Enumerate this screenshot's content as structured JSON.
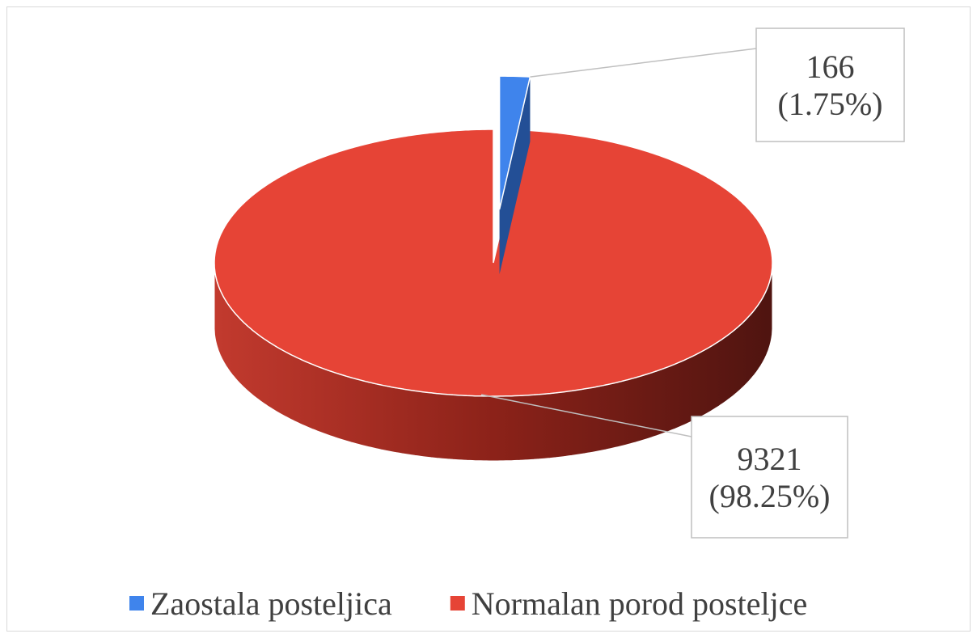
{
  "chart_data": {
    "type": "pie",
    "categories": [
      "Zaostala posteljica",
      "Normalan porod posteljce"
    ],
    "values": [
      166,
      9321
    ],
    "value_labels": [
      "166\n(1.75%)",
      "9321\n(98.25%)"
    ],
    "colors": [
      "#3f84ec",
      "#e64436"
    ],
    "legend": "bottom"
  }
}
